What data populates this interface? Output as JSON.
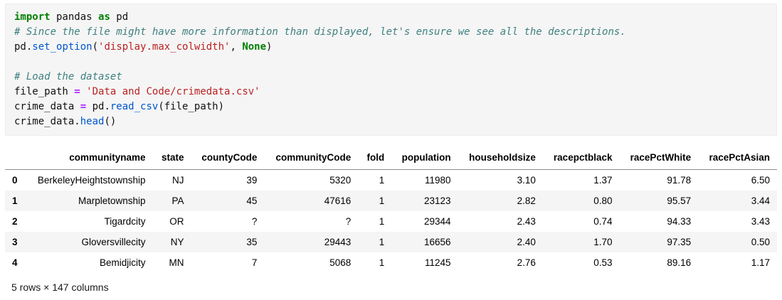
{
  "colors": {
    "kw": "#008000",
    "op": "#AA22FF",
    "str": "#BA2121",
    "com": "#408080",
    "fn": "#0055CC",
    "cell-bg": "#f5f5f5",
    "stripe": "#f5f5f5"
  },
  "code_cell": {
    "language": "python",
    "lines": [
      [
        {
          "c": "kw",
          "t": "import"
        },
        {
          "c": "pl",
          "t": " pandas "
        },
        {
          "c": "kw",
          "t": "as"
        },
        {
          "c": "pl",
          "t": " pd"
        }
      ],
      [
        {
          "c": "com",
          "t": "# Since the file might have more information than displayed, let's ensure we see all the descriptions."
        }
      ],
      [
        {
          "c": "pl",
          "t": "pd."
        },
        {
          "c": "fn",
          "t": "set_option"
        },
        {
          "c": "pl",
          "t": "("
        },
        {
          "c": "str",
          "t": "'display.max_colwidth'"
        },
        {
          "c": "pl",
          "t": ", "
        },
        {
          "c": "kw",
          "t": "None"
        },
        {
          "c": "pl",
          "t": ")"
        }
      ],
      [],
      [
        {
          "c": "com",
          "t": "# Load the dataset"
        }
      ],
      [
        {
          "c": "pl",
          "t": "file_path "
        },
        {
          "c": "op",
          "t": "="
        },
        {
          "c": "pl",
          "t": " "
        },
        {
          "c": "str",
          "t": "'Data and Code/crimedata.csv'"
        }
      ],
      [
        {
          "c": "pl",
          "t": "crime_data "
        },
        {
          "c": "op",
          "t": "="
        },
        {
          "c": "pl",
          "t": " pd."
        },
        {
          "c": "fn",
          "t": "read_csv"
        },
        {
          "c": "pl",
          "t": "(file_path)"
        }
      ],
      [
        {
          "c": "pl",
          "t": "crime_data."
        },
        {
          "c": "fn",
          "t": "head"
        },
        {
          "c": "pl",
          "t": "()"
        }
      ]
    ]
  },
  "table": {
    "index_header": "",
    "columns": [
      "communityname",
      "state",
      "countyCode",
      "communityCode",
      "fold",
      "population",
      "householdsize",
      "racepctblack",
      "racePctWhite",
      "racePctAsian"
    ],
    "index": [
      "0",
      "1",
      "2",
      "3",
      "4"
    ],
    "rows": [
      [
        "BerkeleyHeightstownship",
        "NJ",
        "39",
        "5320",
        "1",
        "11980",
        "3.10",
        "1.37",
        "91.78",
        "6.50"
      ],
      [
        "Marpletownship",
        "PA",
        "45",
        "47616",
        "1",
        "23123",
        "2.82",
        "0.80",
        "95.57",
        "3.44"
      ],
      [
        "Tigardcity",
        "OR",
        "?",
        "?",
        "1",
        "29344",
        "2.43",
        "0.74",
        "94.33",
        "3.43"
      ],
      [
        "Gloversvillecity",
        "NY",
        "35",
        "29443",
        "1",
        "16656",
        "2.40",
        "1.70",
        "97.35",
        "0.50"
      ],
      [
        "Bemidjicity",
        "MN",
        "7",
        "5068",
        "1",
        "11245",
        "2.76",
        "0.53",
        "89.16",
        "1.17"
      ]
    ],
    "footer": "5 rows × 147 columns"
  }
}
